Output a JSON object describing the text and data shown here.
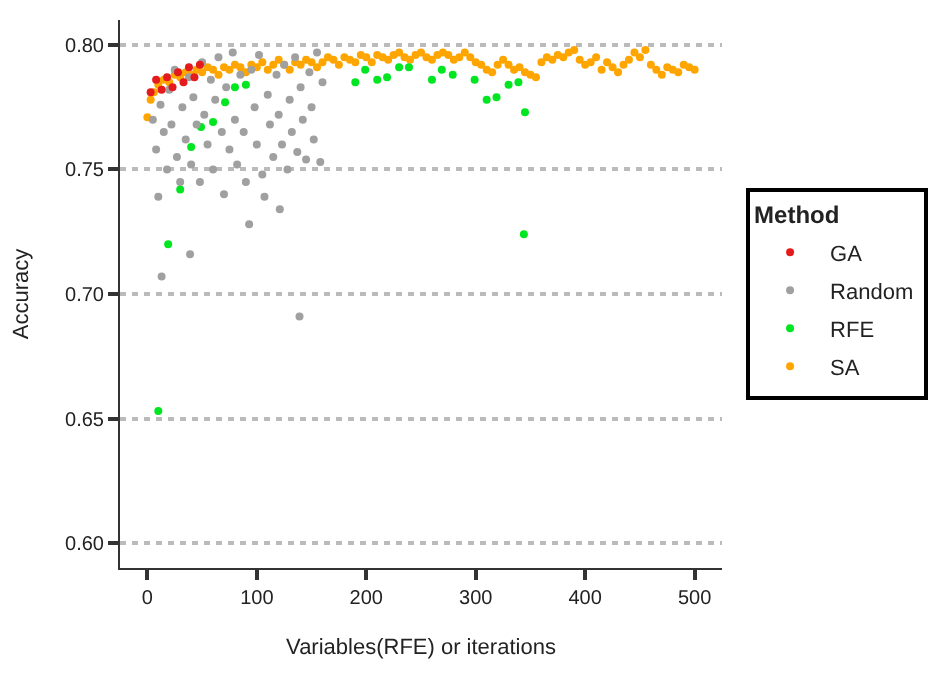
{
  "chart_data": {
    "type": "scatter",
    "xlabel": "Variables(RFE) or iterations",
    "ylabel": "Accuracy",
    "legend_title": "Method",
    "legend": "right",
    "grid": "y",
    "marker": "circle",
    "xlim": [
      -25,
      525
    ],
    "xticks": [
      0,
      100,
      200,
      300,
      400,
      500
    ],
    "ylim": [
      0.59,
      0.81
    ],
    "yticks": [
      {
        "value": 0.6,
        "label": "0.60"
      },
      {
        "value": 0.65,
        "label": "0.65"
      },
      {
        "value": 0.7,
        "label": "0.70"
      },
      {
        "value": 0.75,
        "label": "0.75"
      },
      {
        "value": 0.8,
        "label": "0.80"
      }
    ],
    "series": [
      {
        "name": "GA",
        "color": "#e41a1c",
        "x": [
          3,
          8,
          13,
          18,
          23,
          28,
          33,
          38,
          43,
          48
        ],
        "values": [
          0.781,
          0.786,
          0.782,
          0.787,
          0.783,
          0.789,
          0.785,
          0.791,
          0.787,
          0.792
        ]
      },
      {
        "name": "Random",
        "color": "#a0a0a0",
        "x": [
          5,
          8,
          10,
          12,
          13,
          15,
          18,
          20,
          22,
          25,
          27,
          30,
          32,
          35,
          38,
          39,
          40,
          42,
          45,
          48,
          50,
          52,
          55,
          58,
          60,
          62,
          65,
          68,
          70,
          72,
          75,
          78,
          80,
          82,
          85,
          88,
          90,
          93,
          95,
          98,
          100,
          102,
          105,
          107,
          110,
          112,
          115,
          118,
          120,
          121,
          123,
          125,
          128,
          130,
          132,
          135,
          137,
          139,
          140,
          142,
          145,
          148,
          150,
          152,
          155,
          158,
          160
        ],
        "values": [
          0.77,
          0.758,
          0.739,
          0.776,
          0.707,
          0.765,
          0.75,
          0.782,
          0.768,
          0.79,
          0.755,
          0.745,
          0.775,
          0.762,
          0.787,
          0.716,
          0.752,
          0.779,
          0.768,
          0.745,
          0.793,
          0.772,
          0.76,
          0.786,
          0.75,
          0.778,
          0.795,
          0.765,
          0.74,
          0.783,
          0.758,
          0.797,
          0.77,
          0.752,
          0.788,
          0.765,
          0.745,
          0.728,
          0.79,
          0.775,
          0.76,
          0.796,
          0.748,
          0.739,
          0.78,
          0.768,
          0.755,
          0.788,
          0.772,
          0.734,
          0.76,
          0.792,
          0.75,
          0.778,
          0.765,
          0.795,
          0.757,
          0.691,
          0.783,
          0.77,
          0.754,
          0.789,
          0.775,
          0.762,
          0.797,
          0.753,
          0.785
        ]
      },
      {
        "name": "RFE",
        "color": "#00e620",
        "x": [
          10,
          19,
          30,
          40,
          49,
          60,
          71,
          80,
          90,
          190,
          199,
          210,
          219,
          230,
          239,
          260,
          269,
          279,
          299,
          310,
          319,
          330,
          339,
          345,
          344
        ],
        "values": [
          0.653,
          0.72,
          0.742,
          0.759,
          0.767,
          0.769,
          0.777,
          0.783,
          0.784,
          0.785,
          0.79,
          0.786,
          0.787,
          0.791,
          0.791,
          0.786,
          0.79,
          0.788,
          0.786,
          0.778,
          0.779,
          0.784,
          0.785,
          0.773,
          0.724
        ]
      },
      {
        "name": "SA",
        "color": "#ffa500",
        "x": [
          0,
          3,
          6,
          10,
          15,
          20,
          25,
          30,
          35,
          40,
          45,
          50,
          55,
          60,
          65,
          70,
          75,
          80,
          85,
          90,
          95,
          100,
          105,
          110,
          115,
          120,
          125,
          130,
          135,
          140,
          145,
          150,
          155,
          160,
          165,
          170,
          175,
          180,
          185,
          190,
          195,
          200,
          205,
          210,
          215,
          220,
          225,
          230,
          235,
          240,
          245,
          250,
          255,
          260,
          265,
          270,
          275,
          280,
          285,
          290,
          295,
          300,
          305,
          310,
          315,
          320,
          325,
          330,
          335,
          340,
          345,
          350,
          355,
          360,
          365,
          370,
          375,
          380,
          385,
          390,
          395,
          400,
          405,
          410,
          415,
          420,
          425,
          430,
          435,
          440,
          445,
          450,
          455,
          460,
          465,
          470,
          475,
          480,
          485,
          490,
          495,
          500
        ],
        "values": [
          0.771,
          0.778,
          0.781,
          0.784,
          0.786,
          0.785,
          0.788,
          0.787,
          0.789,
          0.788,
          0.79,
          0.789,
          0.791,
          0.79,
          0.788,
          0.791,
          0.79,
          0.792,
          0.791,
          0.789,
          0.792,
          0.791,
          0.793,
          0.79,
          0.792,
          0.794,
          0.792,
          0.79,
          0.793,
          0.792,
          0.794,
          0.793,
          0.791,
          0.793,
          0.795,
          0.794,
          0.792,
          0.795,
          0.794,
          0.793,
          0.796,
          0.795,
          0.793,
          0.796,
          0.795,
          0.794,
          0.796,
          0.797,
          0.795,
          0.794,
          0.796,
          0.797,
          0.795,
          0.794,
          0.796,
          0.797,
          0.796,
          0.794,
          0.795,
          0.797,
          0.795,
          0.793,
          0.792,
          0.79,
          0.789,
          0.792,
          0.794,
          0.792,
          0.79,
          0.791,
          0.789,
          0.788,
          0.787,
          0.793,
          0.795,
          0.794,
          0.796,
          0.795,
          0.797,
          0.798,
          0.794,
          0.792,
          0.793,
          0.795,
          0.79,
          0.793,
          0.791,
          0.789,
          0.792,
          0.794,
          0.797,
          0.795,
          0.798,
          0.792,
          0.79,
          0.788,
          0.791,
          0.79,
          0.789,
          0.792,
          0.791,
          0.79
        ]
      }
    ]
  }
}
